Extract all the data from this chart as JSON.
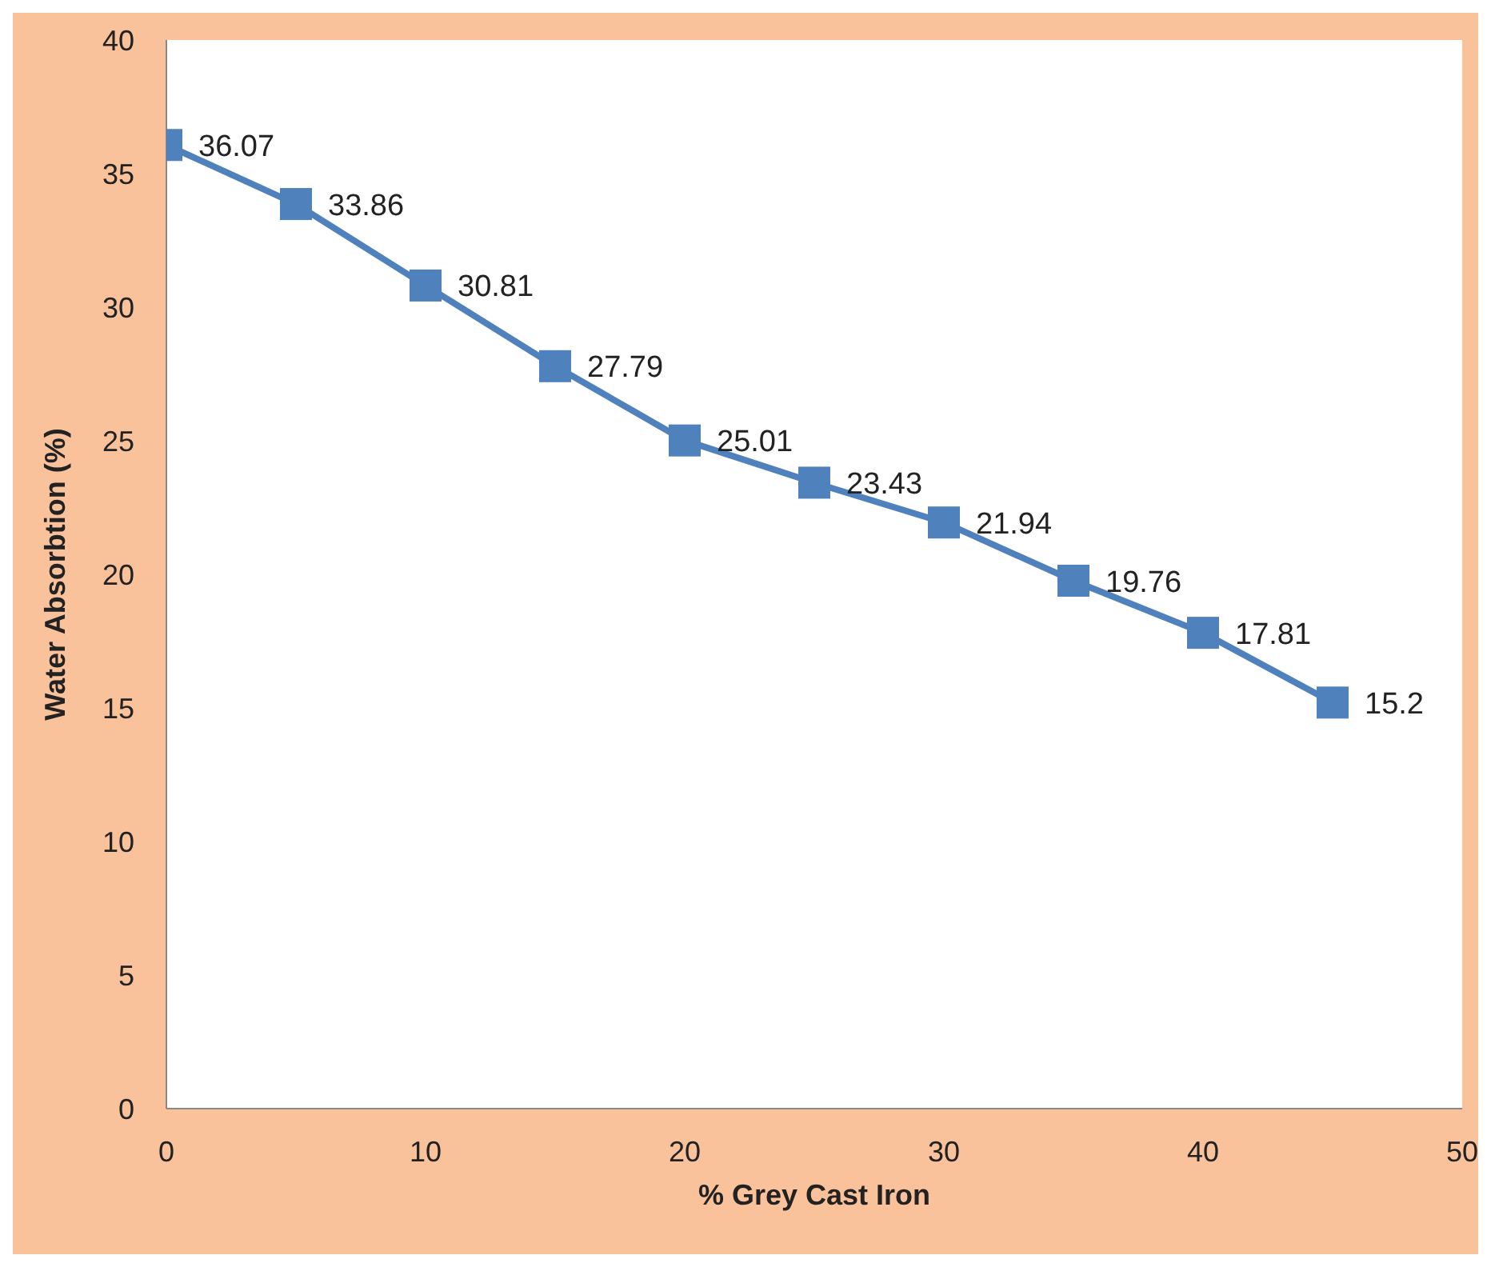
{
  "chart_data": {
    "type": "line",
    "xlabel": "% Grey Cast Iron",
    "ylabel": "Water Absorbtion (%)",
    "x": [
      0,
      5,
      10,
      15,
      20,
      25,
      30,
      35,
      40,
      45
    ],
    "series": [
      {
        "color": "#4f81bd",
        "values": [
          36.07,
          33.86,
          30.81,
          27.79,
          25.01,
          23.43,
          21.94,
          19.76,
          17.81,
          15.2
        ]
      }
    ],
    "xlim": [
      0,
      50
    ],
    "xticks": [
      0,
      10,
      20,
      30,
      40,
      50
    ],
    "ylim": [
      0,
      40
    ],
    "yticks": [
      0,
      5,
      10,
      15,
      20,
      25,
      30,
      35,
      40
    ],
    "grid": false,
    "marker": "square",
    "line_style": "solid",
    "data_labels": true
  }
}
